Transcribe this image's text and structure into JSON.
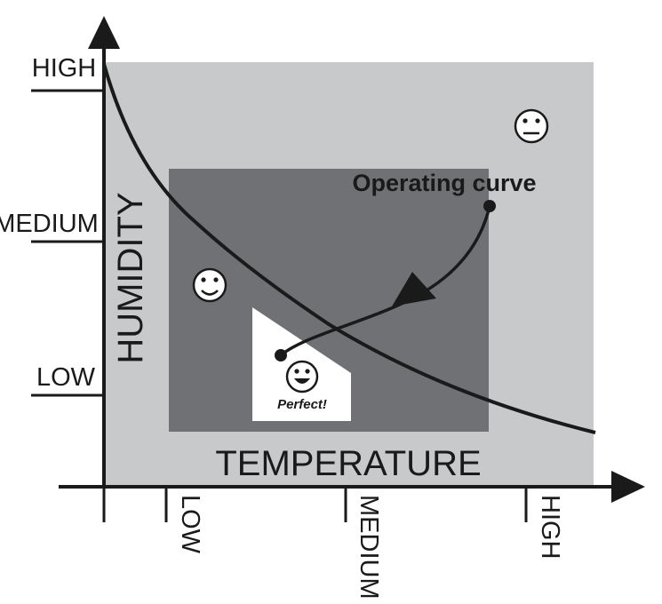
{
  "diagram": {
    "y_axis": {
      "title": "HUMIDITY",
      "ticks": [
        "HIGH",
        "MEDIUM",
        "LOW"
      ]
    },
    "x_axis": {
      "title": "TEMPERATURE",
      "ticks": [
        "LOW",
        "MEDIUM",
        "HIGH"
      ]
    },
    "operating_curve_label": "Operating curve",
    "perfect_label": "Perfect!",
    "zones": [
      {
        "name": "outer-comfort-zone",
        "face": "neutral"
      },
      {
        "name": "good-comfort-zone",
        "face": "happy"
      },
      {
        "name": "perfect-zone",
        "face": "grin"
      }
    ],
    "colors": {
      "outer_zone": "#c8c9cb",
      "good_zone": "#707174",
      "perfect_zone": "#ffffff",
      "lines": "#1a1a1a"
    }
  }
}
